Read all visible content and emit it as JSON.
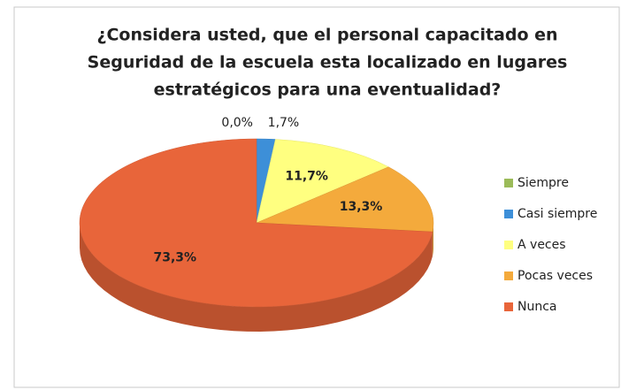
{
  "chart_data": {
    "type": "pie",
    "title": [
      "¿Considera usted, que el personal capacitado en",
      "Seguridad de la escuela esta localizado en lugares",
      "estratégicos para una eventualidad?"
    ],
    "categories": [
      "Siempre",
      "Casi siempre",
      "A veces",
      "Pocas veces",
      "Nunca"
    ],
    "values": [
      0,
      1.7,
      11.7,
      13.3,
      73.3
    ],
    "value_labels": [
      "0,0%",
      "1,7%",
      "11,7%",
      "13,3%",
      "73,3%"
    ],
    "colors": [
      "#9bbb59",
      "#3d8fd8",
      "#ffff80",
      "#f4aa3c",
      "#e8653a"
    ],
    "legend": "right"
  }
}
